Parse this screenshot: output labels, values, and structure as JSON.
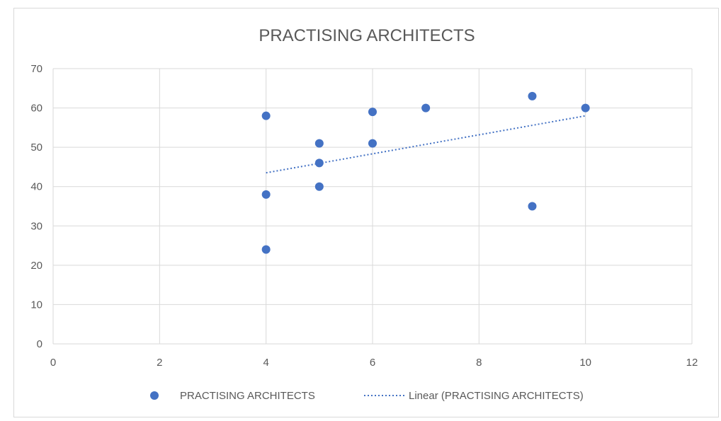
{
  "chart_data": {
    "type": "scatter",
    "title": "PRACTISING ARCHITECTS",
    "xlabel": "",
    "ylabel": "",
    "xlim": [
      0,
      12
    ],
    "ylim": [
      0,
      70
    ],
    "x_ticks": [
      0,
      2,
      4,
      6,
      8,
      10,
      12
    ],
    "y_ticks": [
      0,
      10,
      20,
      30,
      40,
      50,
      60,
      70
    ],
    "grid": true,
    "legend_position": "bottom",
    "series": [
      {
        "name": "PRACTISING ARCHITECTS",
        "color": "#4472c4",
        "points": [
          {
            "x": 4,
            "y": 58
          },
          {
            "x": 4,
            "y": 38
          },
          {
            "x": 4,
            "y": 24
          },
          {
            "x": 5,
            "y": 51
          },
          {
            "x": 5,
            "y": 46
          },
          {
            "x": 5,
            "y": 40
          },
          {
            "x": 6,
            "y": 59
          },
          {
            "x": 6,
            "y": 51
          },
          {
            "x": 7,
            "y": 60
          },
          {
            "x": 9,
            "y": 63
          },
          {
            "x": 9,
            "y": 35
          },
          {
            "x": 10,
            "y": 60
          }
        ]
      }
    ],
    "trendline": {
      "name": "Linear (PRACTISING ARCHITECTS)",
      "type": "linear",
      "color": "#4472c4",
      "style": "dotted",
      "start": {
        "x": 4,
        "y": 43.5
      },
      "end": {
        "x": 10,
        "y": 58
      }
    }
  }
}
